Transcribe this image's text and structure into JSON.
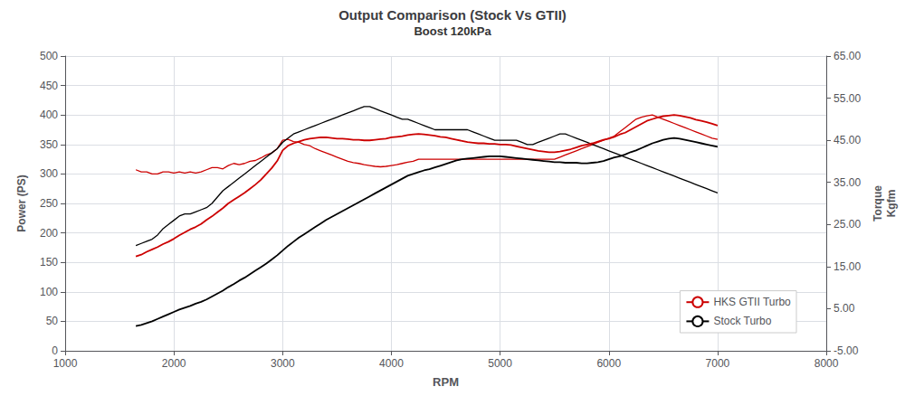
{
  "chart_data": {
    "type": "line",
    "title": "Output Comparison (Stock Vs GTII)",
    "subtitle": "Boost 120kPa",
    "xlabel": "RPM",
    "ylabel": "Power (PS)",
    "y2label": "Torque\nKgfm",
    "xlim": [
      1000,
      8000
    ],
    "xticks": [
      1000,
      2000,
      3000,
      4000,
      5000,
      6000,
      7000,
      8000
    ],
    "ylim": [
      0,
      500
    ],
    "yticks": [
      0,
      50,
      100,
      150,
      200,
      250,
      300,
      350,
      400,
      450,
      500
    ],
    "y2lim": [
      -5.0,
      65.0
    ],
    "y2ticks": [
      {
        "value": -5.0,
        "label": "-5.00"
      },
      {
        "value": 5.0,
        "label": "5.00"
      },
      {
        "value": 15.0,
        "label": "15.00"
      },
      {
        "value": 25.0,
        "label": "25.00"
      },
      {
        "value": 35.0,
        "label": "35.00"
      },
      {
        "value": 45.0,
        "label": "45.00"
      },
      {
        "value": 55.0,
        "label": "55.00"
      },
      {
        "value": 65.0,
        "label": "65.00"
      }
    ],
    "grid": true,
    "legend": "lower right",
    "x": [
      1650,
      1700,
      1750,
      1800,
      1850,
      1900,
      1950,
      2000,
      2050,
      2100,
      2150,
      2200,
      2250,
      2300,
      2350,
      2400,
      2450,
      2500,
      2550,
      2600,
      2650,
      2700,
      2750,
      2800,
      2850,
      2900,
      2950,
      3000,
      3050,
      3100,
      3150,
      3200,
      3250,
      3300,
      3350,
      3400,
      3450,
      3500,
      3550,
      3600,
      3650,
      3700,
      3750,
      3800,
      3850,
      3900,
      3950,
      4000,
      4050,
      4100,
      4150,
      4200,
      4250,
      4300,
      4350,
      4400,
      4450,
      4500,
      4550,
      4600,
      4650,
      4700,
      4750,
      4800,
      4850,
      4900,
      4950,
      5000,
      5050,
      5100,
      5150,
      5200,
      5250,
      5300,
      5350,
      5400,
      5450,
      5500,
      5550,
      5600,
      5650,
      5700,
      5750,
      5800,
      5850,
      5900,
      5950,
      6000,
      6050,
      6100,
      6150,
      6200,
      6250,
      6300,
      6350,
      6400,
      6450,
      6500,
      6550,
      6600,
      6650,
      6700,
      6750,
      6800,
      6850,
      6900,
      6950,
      7000
    ],
    "series": [
      {
        "name": "HKS GTII Turbo",
        "color": "#cc0000",
        "axis": "y",
        "values": [
          160,
          163,
          168,
          172,
          176,
          181,
          185,
          190,
          196,
          201,
          206,
          210,
          215,
          222,
          228,
          235,
          242,
          250,
          256,
          262,
          268,
          275,
          282,
          290,
          300,
          310,
          322,
          340,
          348,
          352,
          355,
          358,
          360,
          361,
          362,
          362,
          361,
          360,
          360,
          359,
          358,
          358,
          357,
          357,
          358,
          359,
          360,
          362,
          363,
          364,
          366,
          367,
          368,
          367,
          366,
          365,
          363,
          362,
          360,
          358,
          356,
          354,
          353,
          352,
          352,
          351,
          351,
          350,
          350,
          349,
          347,
          345,
          343,
          341,
          339,
          338,
          337,
          337,
          338,
          340,
          342,
          345,
          348,
          350,
          352,
          355,
          358,
          360,
          363,
          367,
          370,
          375,
          380,
          385,
          390,
          393,
          396,
          398,
          399,
          400,
          399,
          397,
          395,
          392,
          390,
          388,
          385,
          382
        ]
      },
      {
        "name": "Stock Turbo",
        "color": "#000000",
        "axis": "y",
        "values": [
          42,
          44,
          47,
          50,
          54,
          58,
          62,
          66,
          70,
          73,
          76,
          80,
          83,
          87,
          92,
          97,
          102,
          108,
          113,
          119,
          124,
          130,
          136,
          142,
          148,
          155,
          162,
          170,
          178,
          185,
          192,
          198,
          204,
          210,
          216,
          222,
          227,
          232,
          237,
          242,
          247,
          252,
          257,
          262,
          267,
          272,
          277,
          282,
          287,
          292,
          297,
          300,
          303,
          306,
          308,
          311,
          314,
          317,
          320,
          323,
          325,
          326,
          327,
          328,
          329,
          330,
          330,
          330,
          329,
          328,
          327,
          326,
          325,
          324,
          323,
          322,
          321,
          320,
          320,
          319,
          319,
          319,
          318,
          318,
          319,
          320,
          322,
          325,
          328,
          330,
          333,
          337,
          340,
          344,
          348,
          352,
          355,
          358,
          360,
          361,
          360,
          358,
          356,
          354,
          352,
          350,
          348,
          346
        ]
      },
      {
        "name": "HKS GTII Turbo",
        "color": "#cc0000",
        "axis": "y2",
        "values": [
          38.0,
          37.5,
          37.5,
          37.0,
          37.0,
          37.5,
          37.5,
          37.2,
          37.5,
          37.2,
          37.5,
          37.2,
          37.5,
          38.0,
          38.5,
          38.5,
          38.2,
          39.0,
          39.5,
          39.2,
          39.5,
          40.0,
          40.2,
          40.8,
          41.5,
          42.0,
          43.0,
          45.0,
          45.2,
          44.7,
          44.5,
          44.0,
          43.7,
          43.0,
          42.5,
          42.0,
          41.5,
          41.0,
          40.5,
          40.0,
          39.7,
          39.5,
          39.2,
          39.0,
          38.8,
          38.7,
          38.8,
          39.0,
          39.2,
          39.5,
          39.8,
          40.0,
          40.5,
          40.5,
          40.5,
          40.5,
          40.5,
          40.5,
          40.5,
          40.5,
          40.5,
          40.5,
          40.5,
          40.5,
          40.5,
          40.5,
          40.5,
          40.5,
          40.5,
          40.5,
          40.5,
          40.5,
          40.5,
          40.5,
          40.5,
          40.5,
          40.5,
          40.5,
          41.0,
          41.5,
          42.0,
          42.5,
          43.0,
          43.5,
          44.0,
          44.5,
          45.0,
          45.5,
          46.0,
          47.0,
          48.0,
          49.0,
          50.0,
          50.5,
          50.8,
          51.0,
          50.5,
          50.0,
          49.5,
          49.0,
          48.5,
          48.0,
          47.5,
          47.0,
          46.5,
          46.0,
          45.5,
          45.2
        ]
      },
      {
        "name": "Stock Turbo",
        "color": "#000000",
        "axis": "y2",
        "values": [
          20.0,
          20.5,
          21.0,
          21.5,
          22.5,
          24.0,
          25.0,
          26.0,
          27.0,
          27.5,
          27.5,
          28.0,
          28.5,
          29.0,
          30.0,
          31.5,
          33.0,
          34.0,
          35.0,
          36.0,
          37.0,
          38.0,
          39.0,
          40.0,
          41.0,
          42.0,
          43.0,
          44.5,
          45.5,
          46.5,
          47.0,
          47.5,
          48.0,
          48.5,
          49.0,
          49.5,
          50.0,
          50.5,
          51.0,
          51.5,
          52.0,
          52.5,
          53.0,
          53.0,
          52.5,
          52.0,
          51.5,
          51.0,
          50.5,
          50.0,
          50.0,
          49.5,
          49.0,
          48.5,
          48.0,
          47.5,
          47.5,
          47.5,
          47.5,
          47.5,
          47.5,
          47.5,
          47.0,
          46.5,
          46.0,
          45.5,
          45.0,
          45.0,
          45.0,
          45.0,
          45.0,
          44.5,
          44.0,
          44.0,
          44.5,
          45.0,
          45.5,
          46.0,
          46.5,
          46.5,
          46.0,
          45.5,
          45.0,
          44.5,
          44.0,
          43.5,
          43.0,
          42.5,
          42.0,
          41.5,
          41.0,
          40.5,
          40.0,
          39.5,
          39.0,
          38.5,
          38.0,
          37.5,
          37.0,
          36.5,
          36.0,
          35.5,
          35.0,
          34.5,
          34.0,
          33.5,
          33.0,
          32.5
        ]
      }
    ]
  }
}
